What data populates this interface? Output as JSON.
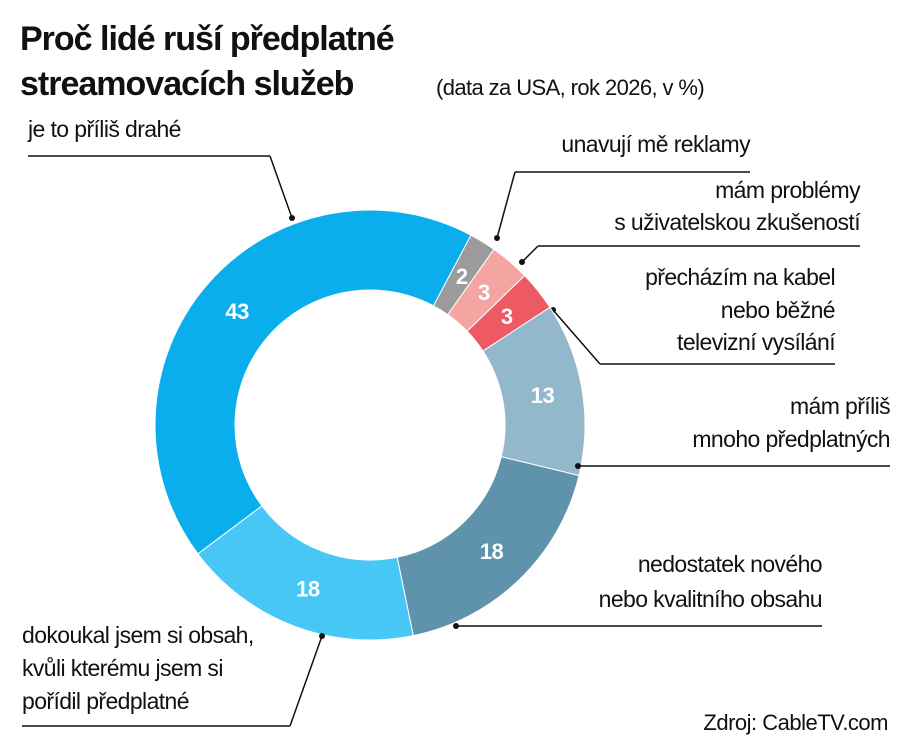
{
  "chart_data": {
    "type": "donut",
    "title": [
      "Proč lidé ruší předplatné",
      "streamovacích služeb"
    ],
    "subtitle": "(data za USA, rok 2026, v %)",
    "source": "Zdroj: CableTV.com",
    "categories": [
      [
        "unavují mě reklamy"
      ],
      [
        "mám problémy",
        "s uživatelskou zkušeností"
      ],
      [
        "přecházím na kabel",
        "nebo běžné",
        "televizní vysílání"
      ],
      [
        "mám příliš",
        "mnoho předplatných"
      ],
      [
        "nedostatek nového",
        "nebo kvalitního obsahu"
      ],
      [
        "dokoukal jsem si obsah,",
        "kvůli kterému jsem si",
        "pořídil předplatné"
      ],
      [
        "je to příliš drahé"
      ]
    ],
    "values": [
      2,
      3,
      3,
      13,
      18,
      18,
      43
    ],
    "colors": [
      "#9b9b9b",
      "#f4a4a1",
      "#ee5a63",
      "#93b8cc",
      "#5f93ab",
      "#46c7f5",
      "#0aaeec"
    ]
  }
}
